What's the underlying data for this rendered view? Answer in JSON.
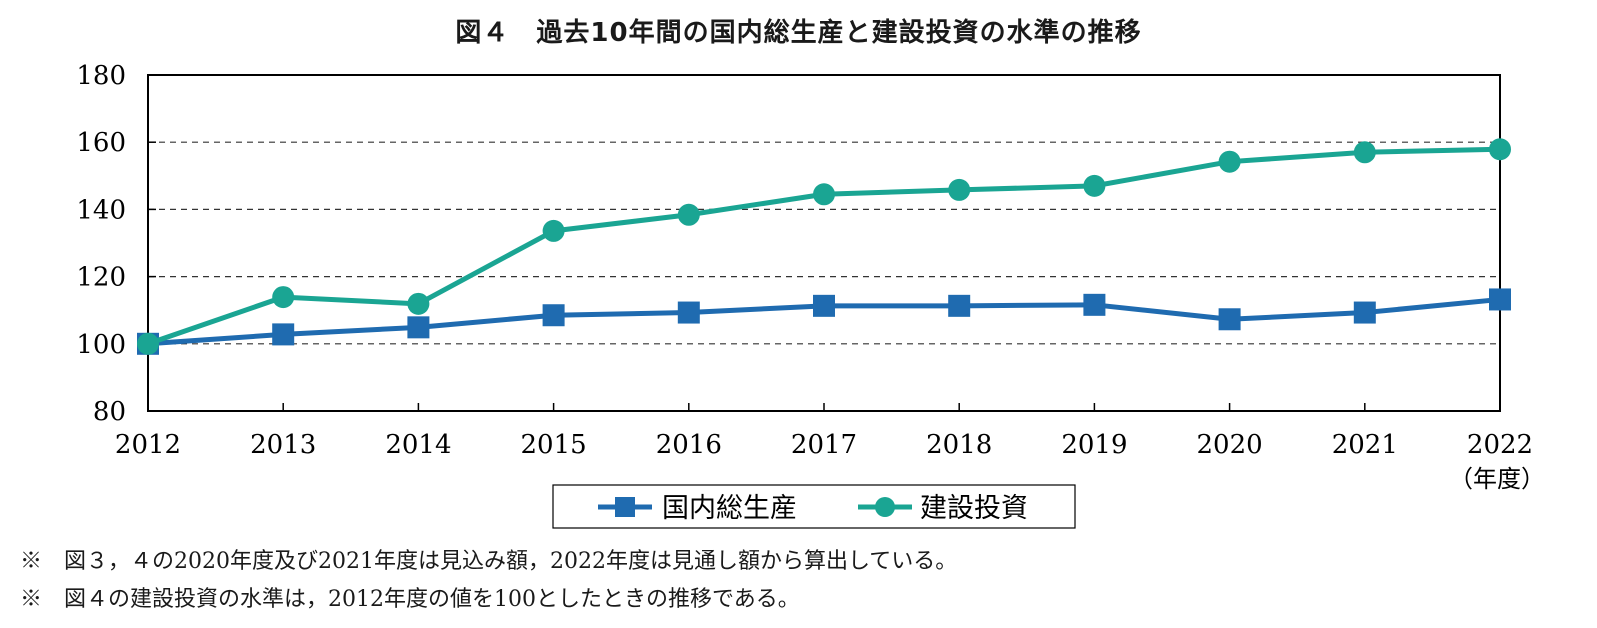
{
  "chart_data": {
    "type": "line",
    "title": "図４　過去10年間の国内総生産と建設投資の水準の推移",
    "categories": [
      "2012",
      "2013",
      "2014",
      "2015",
      "2016",
      "2017",
      "2018",
      "2019",
      "2020",
      "2021",
      "2022"
    ],
    "x_unit": "（年度）",
    "ylim": [
      80,
      180
    ],
    "yticks": [
      80,
      100,
      120,
      140,
      160,
      180
    ],
    "grid": true,
    "legend_position": "bottom-center",
    "series": [
      {
        "name": "国内総生産",
        "color": "#1f6bb0",
        "marker": "square",
        "values": [
          100,
          102.8,
          104.9,
          108.5,
          109.3,
          111.3,
          111.3,
          111.6,
          107.3,
          109.3,
          113.2
        ]
      },
      {
        "name": "建設投資",
        "color": "#1aa593",
        "marker": "circle",
        "values": [
          100,
          113.9,
          111.9,
          133.6,
          138.4,
          144.5,
          145.8,
          147.0,
          154.2,
          157.0,
          157.9
        ]
      }
    ]
  },
  "notes": [
    "※　図３，４の2020年度及び2021年度は見込み額，2022年度は見通し額から算出している。",
    "※　図４の建設投資の水準は，2012年度の値を100としたときの推移である。"
  ]
}
